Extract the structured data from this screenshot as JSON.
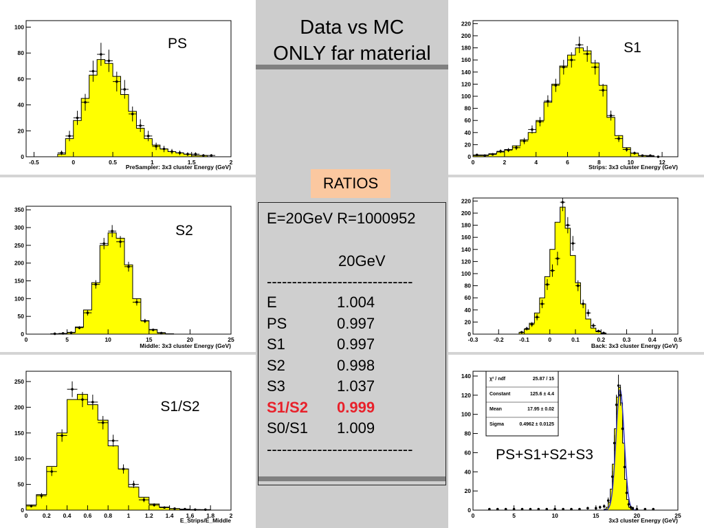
{
  "header": {
    "line1": "Data vs MC",
    "line2": "ONLY far material"
  },
  "ratios_button": "RATIOS",
  "ratios_box": {
    "setting": "E=20GeV R=1000952",
    "energy_header": "20GeV",
    "separator": "-----------------------------",
    "rows": [
      {
        "name": "E",
        "value": "1.004",
        "highlight": false
      },
      {
        "name": "PS",
        "value": "0.997",
        "highlight": false
      },
      {
        "name": "S1",
        "value": "0.997",
        "highlight": false
      },
      {
        "name": "S2",
        "value": "0.998",
        "highlight": false
      },
      {
        "name": "S3",
        "value": "1.037",
        "highlight": false
      },
      {
        "name": "S1/S2",
        "value": "0.999",
        "highlight": true
      },
      {
        "name": "S0/S1",
        "value": "1.009",
        "highlight": false
      }
    ]
  },
  "fit_stats": {
    "rows": [
      {
        "label": "χ² / ndf",
        "value": "25.87 / 15"
      },
      {
        "label": "Constant",
        "value": "125.6 ± 4.4"
      },
      {
        "label": "Mean",
        "value": "17.95 ± 0.02"
      },
      {
        "label": "Sigma",
        "value": "0.4962 ± 0.0125"
      }
    ]
  },
  "colors": {
    "mc_fill": "#ffff00",
    "data_marker": "#000000",
    "fit_line": "#3030c0",
    "highlight": "#e8202a"
  },
  "chart_data": [
    {
      "id": "ps",
      "type": "bar",
      "title": "PS",
      "xlabel": "PreSampler: 3x3 cluster Energy (GeV)",
      "xlim": [
        -0.6,
        2.0
      ],
      "ylim": [
        0,
        105
      ],
      "xticks": [
        "-0.5",
        "0",
        "0.5",
        "1",
        "1.5",
        "2"
      ],
      "xtick_values": [
        -0.5,
        0,
        0.5,
        1,
        1.5,
        2
      ],
      "yticks": [
        "0",
        "20",
        "40",
        "60",
        "80",
        "100"
      ],
      "ytick_values": [
        0,
        20,
        40,
        60,
        80,
        100
      ],
      "bin_edges": [
        -0.2,
        -0.1,
        0,
        0.1,
        0.2,
        0.3,
        0.4,
        0.5,
        0.6,
        0.7,
        0.8,
        0.9,
        1.0,
        1.1,
        1.2,
        1.3,
        1.4,
        1.5,
        1.6,
        1.7,
        1.8
      ],
      "mc_values": [
        2,
        14,
        28,
        45,
        63,
        75,
        72,
        62,
        48,
        35,
        22,
        14,
        9,
        6,
        4,
        3,
        2,
        1,
        1,
        0
      ],
      "data_x": [
        -0.15,
        -0.05,
        0.05,
        0.15,
        0.25,
        0.35,
        0.45,
        0.55,
        0.65,
        0.75,
        0.85,
        0.95,
        1.05,
        1.15,
        1.25,
        1.35,
        1.45,
        1.55,
        1.65,
        1.75
      ],
      "data_y": [
        3,
        16,
        30,
        42,
        66,
        79,
        74,
        58,
        52,
        33,
        24,
        16,
        8,
        6,
        4,
        3,
        2,
        2,
        1,
        1
      ]
    },
    {
      "id": "s1",
      "type": "bar",
      "title": "S1",
      "xlabel": "Strips: 3x3 cluster Energy (GeV)",
      "xlim": [
        0,
        13
      ],
      "ylim": [
        0,
        225
      ],
      "xticks": [
        "0",
        "2",
        "4",
        "6",
        "8",
        "10",
        "12"
      ],
      "xtick_values": [
        0,
        2,
        4,
        6,
        8,
        10,
        12
      ],
      "yticks": [
        "0",
        "20",
        "40",
        "60",
        "80",
        "100",
        "120",
        "140",
        "160",
        "180",
        "200",
        "220"
      ],
      "ytick_values": [
        0,
        20,
        40,
        60,
        80,
        100,
        120,
        140,
        160,
        180,
        200,
        220
      ],
      "bin_edges": [
        0,
        0.5,
        1,
        1.5,
        2,
        2.5,
        3,
        3.5,
        4,
        4.5,
        5,
        5.5,
        6,
        6.5,
        7,
        7.5,
        8,
        8.5,
        9,
        9.5,
        10,
        10.5,
        11,
        11.5,
        12
      ],
      "mc_values": [
        2,
        3,
        5,
        8,
        12,
        18,
        28,
        40,
        60,
        90,
        120,
        150,
        168,
        180,
        175,
        155,
        118,
        65,
        35,
        15,
        6,
        2,
        1,
        0
      ],
      "data_x": [
        0.25,
        0.75,
        1.25,
        1.75,
        2.25,
        2.75,
        3.25,
        3.75,
        4.25,
        4.75,
        5.25,
        5.75,
        6.25,
        6.75,
        7.25,
        7.75,
        8.25,
        8.75,
        9.25,
        9.75,
        10.25,
        10.75,
        11.25,
        11.75
      ],
      "data_y": [
        3,
        2,
        4,
        9,
        11,
        15,
        26,
        45,
        58,
        92,
        118,
        148,
        160,
        185,
        170,
        148,
        110,
        68,
        30,
        12,
        6,
        2,
        2,
        0
      ]
    },
    {
      "id": "s2",
      "type": "bar",
      "title": "S2",
      "xlabel": "Middle: 3x3 cluster Energy (GeV)",
      "xlim": [
        0,
        25
      ],
      "ylim": [
        0,
        360
      ],
      "xticks": [
        "0",
        "5",
        "10",
        "15",
        "20",
        "25"
      ],
      "xtick_values": [
        0,
        5,
        10,
        15,
        20,
        25
      ],
      "yticks": [
        "0",
        "50",
        "100",
        "150",
        "200",
        "250",
        "300",
        "350"
      ],
      "ytick_values": [
        0,
        50,
        100,
        150,
        200,
        250,
        300,
        350
      ],
      "bin_edges": [
        0,
        1,
        2,
        3,
        4,
        5,
        6,
        7,
        8,
        9,
        10,
        11,
        12,
        13,
        14,
        15,
        16,
        17,
        18,
        19,
        20,
        21,
        22,
        23,
        24,
        25
      ],
      "mc_values": [
        0,
        0,
        0,
        1,
        2,
        5,
        20,
        68,
        145,
        250,
        285,
        270,
        195,
        100,
        38,
        13,
        4,
        1,
        0,
        0,
        0,
        0,
        0,
        0,
        0
      ],
      "data_x": [
        3.5,
        4.5,
        5.5,
        6.5,
        7.5,
        8.5,
        9.5,
        10.5,
        11.5,
        12.5,
        13.5,
        14.5,
        15.5,
        16.5
      ],
      "data_y": [
        1,
        2,
        4,
        18,
        60,
        140,
        255,
        290,
        260,
        190,
        90,
        37,
        12,
        3
      ]
    },
    {
      "id": "back",
      "type": "bar",
      "title": "",
      "xlabel": "Back: 3x3 cluster Energy (GeV)",
      "xlim": [
        -0.3,
        0.5
      ],
      "ylim": [
        0,
        225
      ],
      "xticks": [
        "-0.3",
        "-0.2",
        "-0.1",
        "0",
        "0.1",
        "0.2",
        "0.3",
        "0.4",
        "0.5"
      ],
      "xtick_values": [
        -0.3,
        -0.2,
        -0.1,
        0,
        0.1,
        0.2,
        0.3,
        0.4,
        0.5
      ],
      "yticks": [
        "0",
        "20",
        "40",
        "60",
        "80",
        "100",
        "120",
        "140",
        "160",
        "180",
        "200",
        "220"
      ],
      "ytick_values": [
        0,
        20,
        40,
        60,
        80,
        100,
        120,
        140,
        160,
        180,
        200,
        220
      ],
      "bin_edges": [
        -0.12,
        -0.1,
        -0.08,
        -0.06,
        -0.04,
        -0.02,
        0,
        0.02,
        0.04,
        0.06,
        0.08,
        0.1,
        0.12,
        0.14,
        0.16,
        0.18,
        0.2,
        0.22
      ],
      "mc_values": [
        3,
        8,
        18,
        35,
        60,
        95,
        140,
        185,
        210,
        175,
        130,
        85,
        50,
        25,
        10,
        4,
        1
      ],
      "data_x": [
        -0.11,
        -0.09,
        -0.07,
        -0.05,
        -0.03,
        -0.01,
        0.01,
        0.03,
        0.05,
        0.07,
        0.09,
        0.11,
        0.13,
        0.15,
        0.17,
        0.19,
        0.21
      ],
      "data_y": [
        3,
        9,
        16,
        28,
        50,
        82,
        105,
        125,
        218,
        180,
        150,
        80,
        50,
        35,
        14,
        5,
        2
      ]
    },
    {
      "id": "s1s2",
      "type": "bar",
      "title": "S1/S2",
      "xlabel": "E_Strips/E_Middle",
      "xlim": [
        0,
        2.0
      ],
      "ylim": [
        0,
        270
      ],
      "xticks": [
        "0",
        "0.2",
        "0.4",
        "0.6",
        "0.8",
        "1",
        "1.2",
        "1.4",
        "1.6",
        "1.8",
        "2"
      ],
      "xtick_values": [
        0,
        0.2,
        0.4,
        0.6,
        0.8,
        1,
        1.2,
        1.4,
        1.6,
        1.8,
        2
      ],
      "yticks": [
        "0",
        "50",
        "100",
        "150",
        "200",
        "250"
      ],
      "ytick_values": [
        0,
        50,
        100,
        150,
        200,
        250
      ],
      "bin_edges": [
        0,
        0.1,
        0.2,
        0.3,
        0.4,
        0.5,
        0.6,
        0.7,
        0.8,
        0.9,
        1.0,
        1.1,
        1.2,
        1.3,
        1.4,
        1.5,
        1.6,
        1.7,
        1.8
      ],
      "mc_values": [
        10,
        30,
        85,
        150,
        215,
        225,
        205,
        175,
        125,
        80,
        45,
        25,
        12,
        6,
        3,
        1,
        1,
        0
      ],
      "data_x": [
        0.05,
        0.15,
        0.25,
        0.35,
        0.45,
        0.55,
        0.65,
        0.75,
        0.85,
        0.95,
        1.05,
        1.15,
        1.25,
        1.35,
        1.45,
        1.55,
        1.65,
        1.75
      ],
      "data_y": [
        8,
        28,
        75,
        145,
        235,
        215,
        210,
        170,
        135,
        80,
        50,
        20,
        10,
        5,
        3,
        2,
        1,
        1
      ]
    },
    {
      "id": "total",
      "type": "bar",
      "title": "PS+S1+S2+S3",
      "xlabel": "3x3 cluster Energy (GeV)",
      "xlim": [
        0,
        25
      ],
      "ylim": [
        0,
        145
      ],
      "xticks": [
        "0",
        "5",
        "10",
        "15",
        "20",
        "25"
      ],
      "xtick_values": [
        0,
        5,
        10,
        15,
        20,
        25
      ],
      "yticks": [
        "0",
        "20",
        "40",
        "60",
        "80",
        "100",
        "120",
        "140"
      ],
      "ytick_values": [
        0,
        20,
        40,
        60,
        80,
        100,
        120,
        140
      ],
      "bin_edges": [
        16,
        16.25,
        16.5,
        16.75,
        17,
        17.25,
        17.5,
        17.75,
        18,
        18.25,
        18.5,
        18.75,
        19,
        19.25,
        19.5
      ],
      "mc_values": [
        1,
        3,
        8,
        22,
        48,
        85,
        118,
        128,
        112,
        70,
        32,
        11,
        3,
        1
      ],
      "data_x": [
        2,
        3,
        4,
        5,
        6,
        7,
        8,
        9,
        10,
        11,
        12,
        13,
        14,
        15,
        15.5,
        16,
        16.5,
        17,
        17.25,
        17.5,
        17.75,
        18,
        18.25,
        18.5,
        18.75,
        19,
        19.25,
        19.5,
        20,
        21,
        22
      ],
      "data_y": [
        1,
        1,
        1,
        1,
        1,
        1,
        1,
        1,
        1,
        1,
        1,
        1,
        2,
        2,
        3,
        4,
        10,
        35,
        70,
        110,
        130,
        120,
        85,
        45,
        18,
        6,
        3,
        2,
        1,
        1,
        1
      ],
      "fit": {
        "constant": 125.6,
        "mean": 17.95,
        "sigma": 0.4962
      }
    }
  ]
}
